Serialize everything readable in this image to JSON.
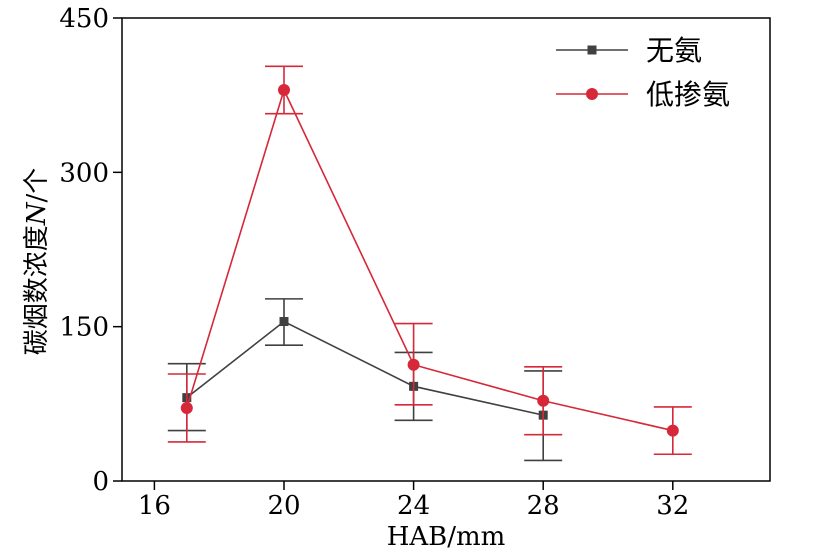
{
  "chart_data": {
    "type": "line",
    "xlabel": "HAB/mm",
    "ylabel_prefix": "碳烟数浓度",
    "ylabel_var": "N",
    "ylabel_suffix": "/个",
    "xlim": [
      15,
      35
    ],
    "ylim": [
      0,
      450
    ],
    "xticks": [
      16,
      20,
      24,
      28,
      32
    ],
    "yticks": [
      0,
      150,
      300,
      450
    ],
    "grid": false,
    "legend_position": "top-right",
    "series": [
      {
        "name": "无氨",
        "color": "#404040",
        "marker": "square",
        "points": [
          {
            "x": 17,
            "y": 81,
            "err_low": 49,
            "err_high": 114
          },
          {
            "x": 20,
            "y": 155,
            "err_low": 132,
            "err_high": 177
          },
          {
            "x": 24,
            "y": 92,
            "err_low": 59,
            "err_high": 125
          },
          {
            "x": 28,
            "y": 64,
            "err_low": 20,
            "err_high": 107
          }
        ]
      },
      {
        "name": "低掺氨",
        "color": "#d62839",
        "marker": "circle",
        "points": [
          {
            "x": 17,
            "y": 71,
            "err_low": 38,
            "err_high": 104
          },
          {
            "x": 20,
            "y": 380,
            "err_low": 357,
            "err_high": 403
          },
          {
            "x": 24,
            "y": 113,
            "err_low": 74,
            "err_high": 153
          },
          {
            "x": 28,
            "y": 78,
            "err_low": 45,
            "err_high": 111
          },
          {
            "x": 32,
            "y": 49,
            "err_low": 26,
            "err_high": 72
          }
        ]
      }
    ]
  }
}
